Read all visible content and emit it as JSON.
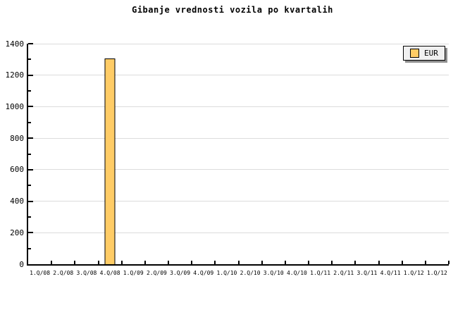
{
  "title": "Gibanje vrednosti vozila po kvartalih",
  "legend": {
    "label": "EUR",
    "swatch_color": "#FFCC66",
    "position": "top-right"
  },
  "colors": {
    "background": "#FFFFFF",
    "bar_fill": "#FFCC66",
    "bar_border": "#000000",
    "grid": "#DCDCDC",
    "axis": "#000000",
    "legend_bg": "#F0F0F0",
    "legend_shadow": "#8F8F8F",
    "text": "#000000"
  },
  "chart_data": {
    "type": "bar",
    "title": "Gibanje vrednosti vozila po kvartalih",
    "categories": [
      "1.Q/08",
      "2.Q/08",
      "3.Q/08",
      "4.Q/08",
      "1.Q/09",
      "2.Q/09",
      "3.Q/09",
      "4.Q/09",
      "1.Q/10",
      "2.Q/10",
      "3.Q/10",
      "4.Q/10",
      "1.Q/11",
      "2.Q/11",
      "3.Q/11",
      "4.Q/11",
      "1.Q/12",
      "1.Q/12"
    ],
    "series": [
      {
        "name": "EUR",
        "values": [
          null,
          null,
          null,
          1312,
          null,
          null,
          null,
          null,
          null,
          null,
          null,
          null,
          null,
          null,
          null,
          null,
          null,
          null
        ]
      }
    ],
    "xlabel": "",
    "ylabel": "",
    "ylim": [
      0,
      1400
    ],
    "y_major_step": 200,
    "y_minor_step": 100,
    "y_tick_labels": [
      "0",
      "200",
      "400",
      "600",
      "800",
      "1000",
      "1200",
      "1400"
    ],
    "grid": "horizontal-major-only",
    "legend_position": "top-right"
  }
}
